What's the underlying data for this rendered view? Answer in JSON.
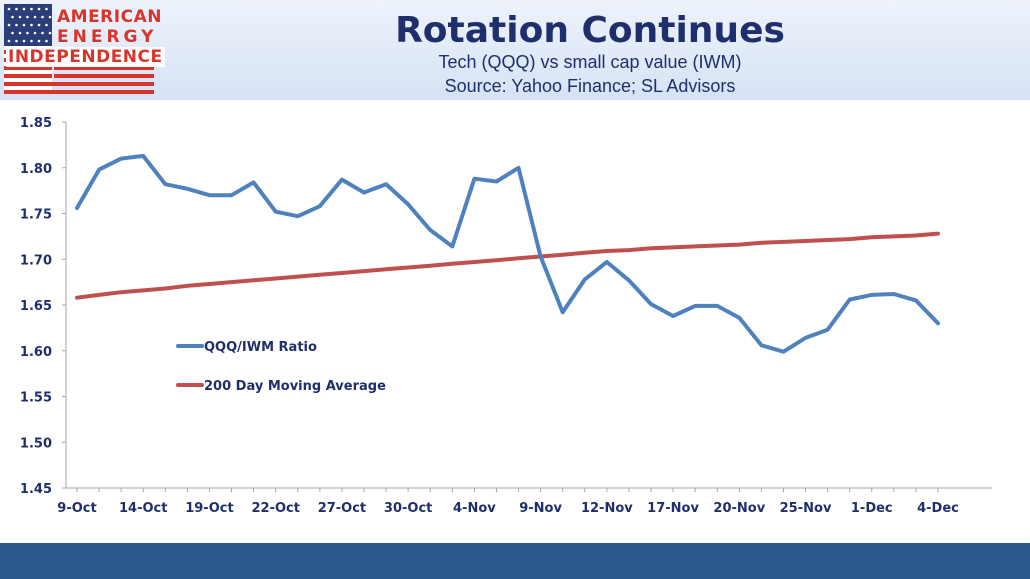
{
  "logo": {
    "line1": "AMERICAN",
    "line2": "ENERGY",
    "line3": "INDEPENDENCE",
    "flag_blue": "#2c3e7a",
    "flag_red": "#d9342b"
  },
  "header": {
    "title": "Rotation Continues",
    "subtitle": "Tech (QQQ) vs small cap value (IWM)",
    "source": "Source: Yahoo Finance; SL Advisors"
  },
  "colors": {
    "title": "#1f2f6b",
    "footer": "#2d5a8c"
  },
  "chart_data": {
    "type": "line",
    "ylim": [
      1.45,
      1.85
    ],
    "yticks": [
      "1.85",
      "1.80",
      "1.75",
      "1.70",
      "1.65",
      "1.60",
      "1.55",
      "1.50",
      "1.45"
    ],
    "ytick_values": [
      1.85,
      1.8,
      1.75,
      1.7,
      1.65,
      1.6,
      1.55,
      1.5,
      1.45
    ],
    "xtick_labels": [
      "9-Oct",
      "14-Oct",
      "19-Oct",
      "22-Oct",
      "27-Oct",
      "30-Oct",
      "4-Nov",
      "9-Nov",
      "12-Nov",
      "17-Nov",
      "20-Nov",
      "25-Nov",
      "1-Dec",
      "4-Dec"
    ],
    "xtick_index": [
      0,
      3,
      6,
      9,
      12,
      15,
      18,
      21,
      24,
      27,
      30,
      33,
      36,
      39
    ],
    "n_points": 40,
    "legend_position": "left-center",
    "grid": false,
    "series": [
      {
        "name": "QQQ/IWM Ratio",
        "color": "#4f81bd",
        "values": [
          1.756,
          1.798,
          1.81,
          1.813,
          1.782,
          1.777,
          1.77,
          1.77,
          1.784,
          1.752,
          1.747,
          1.758,
          1.787,
          1.773,
          1.782,
          1.76,
          1.732,
          1.714,
          1.788,
          1.785,
          1.8,
          1.703,
          1.642,
          1.678,
          1.697,
          1.677,
          1.651,
          1.638,
          1.649,
          1.649,
          1.636,
          1.606,
          1.599,
          1.614,
          1.623,
          1.656,
          1.661,
          1.662,
          1.655,
          1.63
        ]
      },
      {
        "name": "200 Day Moving Average",
        "color": "#c0504d",
        "values": [
          1.658,
          1.661,
          1.664,
          1.666,
          1.668,
          1.671,
          1.673,
          1.675,
          1.677,
          1.679,
          1.681,
          1.683,
          1.685,
          1.687,
          1.689,
          1.691,
          1.693,
          1.695,
          1.697,
          1.699,
          1.701,
          1.703,
          1.705,
          1.707,
          1.709,
          1.71,
          1.712,
          1.713,
          1.714,
          1.715,
          1.716,
          1.718,
          1.719,
          1.72,
          1.721,
          1.722,
          1.724,
          1.725,
          1.726,
          1.728
        ]
      }
    ]
  }
}
